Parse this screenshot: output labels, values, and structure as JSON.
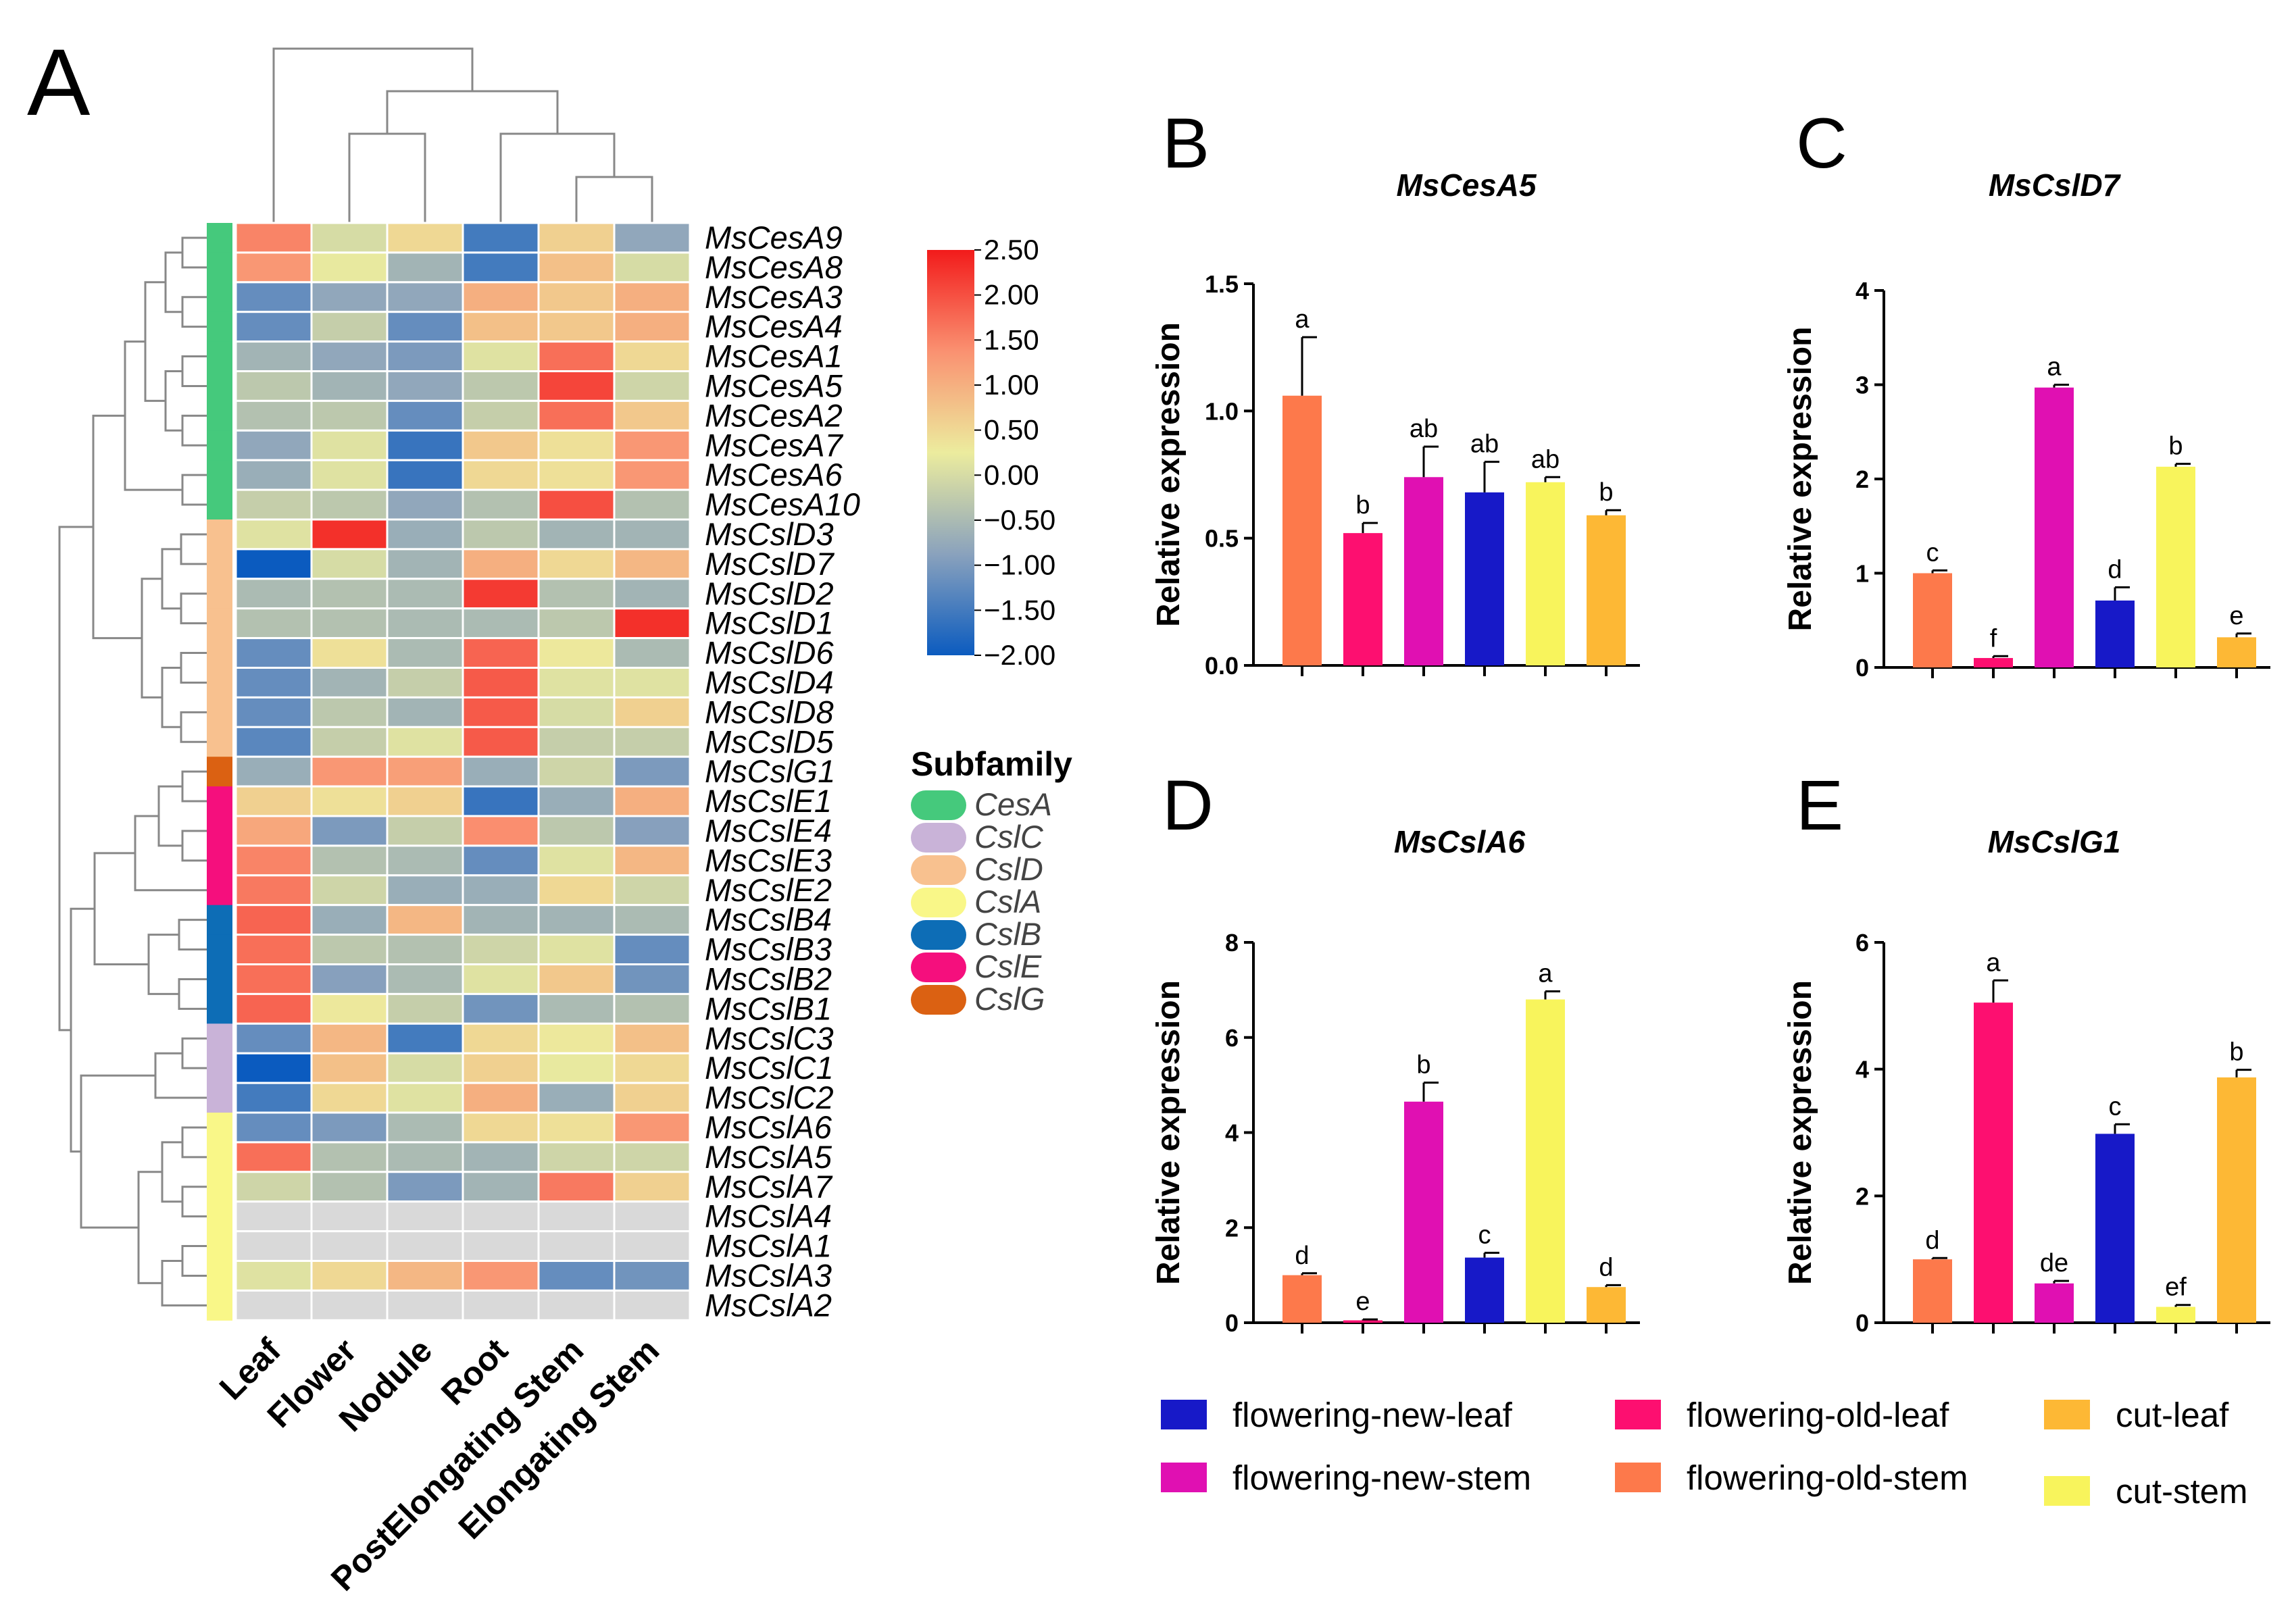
{
  "figure": {
    "panel_labels": [
      "A",
      "B",
      "C",
      "D",
      "E"
    ]
  },
  "chart_data": [
    {
      "type": "heatmap",
      "panel": "A",
      "columns": [
        "Leaf",
        "Flower",
        "Nodule",
        "Root",
        "PostElongating Stem",
        "Elongating Stem"
      ],
      "rows": [
        "MsCesA9",
        "MsCesA8",
        "MsCesA3",
        "MsCesA4",
        "MsCesA1",
        "MsCesA5",
        "MsCesA2",
        "MsCesA7",
        "MsCesA6",
        "MsCesA10",
        "MsCslD3",
        "MsCslD7",
        "MsCslD2",
        "MsCslD1",
        "MsCslD6",
        "MsCslD4",
        "MsCslD8",
        "MsCslD5",
        "MsCslG1",
        "MsCslE1",
        "MsCslE4",
        "MsCslE3",
        "MsCslE2",
        "MsCslB4",
        "MsCslB3",
        "MsCslB2",
        "MsCslB1",
        "MsCslC3",
        "MsCslC1",
        "MsCslC2",
        "MsCslA6",
        "MsCslA5",
        "MsCslA7",
        "MsCslA4",
        "MsCslA1",
        "MsCslA3",
        "MsCslA2"
      ],
      "row_subfamily": [
        "CesA",
        "CesA",
        "CesA",
        "CesA",
        "CesA",
        "CesA",
        "CesA",
        "CesA",
        "CesA",
        "CesA",
        "CslD",
        "CslD",
        "CslD",
        "CslD",
        "CslD",
        "CslD",
        "CslD",
        "CslD",
        "CslG",
        "CslE",
        "CslE",
        "CslE",
        "CslE",
        "CslB",
        "CslB",
        "CslB",
        "CslB",
        "CslC",
        "CslC",
        "CslC",
        "CslA",
        "CslA",
        "CslA",
        "CslA",
        "CslA",
        "CslA",
        "CslA"
      ],
      "values": [
        [
          1.5,
          0.0,
          0.5,
          -1.5,
          0.6,
          -0.8
        ],
        [
          1.3,
          0.2,
          -0.6,
          -1.5,
          0.8,
          0.0
        ],
        [
          -1.2,
          -0.8,
          -0.8,
          1.0,
          0.7,
          1.0
        ],
        [
          -1.2,
          -0.2,
          -1.2,
          0.8,
          0.7,
          1.0
        ],
        [
          -0.6,
          -0.8,
          -1.0,
          0.1,
          1.7,
          0.5
        ],
        [
          -0.3,
          -0.6,
          -0.8,
          -0.3,
          2.1,
          -0.1
        ],
        [
          -0.4,
          -0.3,
          -1.2,
          -0.2,
          1.7,
          0.7
        ],
        [
          -0.8,
          0.1,
          -1.6,
          0.7,
          0.4,
          1.3
        ],
        [
          -0.7,
          0.1,
          -1.6,
          0.5,
          0.4,
          1.3
        ],
        [
          -0.2,
          -0.3,
          -0.8,
          -0.4,
          2.0,
          -0.4
        ],
        [
          0.1,
          2.3,
          -0.7,
          -0.3,
          -0.6,
          -0.6
        ],
        [
          -2.0,
          0.0,
          -0.6,
          1.0,
          0.5,
          0.9
        ],
        [
          -0.5,
          -0.4,
          -0.5,
          2.2,
          -0.4,
          -0.6
        ],
        [
          -0.4,
          -0.4,
          -0.5,
          -0.5,
          -0.3,
          2.3
        ],
        [
          -1.2,
          0.4,
          -0.5,
          1.8,
          0.3,
          -0.5
        ],
        [
          -1.2,
          -0.6,
          -0.2,
          1.9,
          0.1,
          0.1
        ],
        [
          -1.2,
          -0.3,
          -0.6,
          1.9,
          0.0,
          0.6
        ],
        [
          -1.3,
          -0.2,
          0.1,
          1.9,
          -0.2,
          -0.2
        ],
        [
          -0.7,
          1.3,
          1.2,
          -0.7,
          -0.1,
          -1.0
        ],
        [
          0.6,
          0.4,
          0.6,
          -1.6,
          -0.7,
          1.0
        ],
        [
          1.1,
          -1.0,
          -0.2,
          1.4,
          -0.3,
          -0.9
        ],
        [
          1.5,
          -0.4,
          -0.5,
          -1.2,
          0.1,
          0.9
        ],
        [
          1.6,
          -0.1,
          -0.7,
          -0.7,
          0.5,
          -0.1
        ],
        [
          1.8,
          -0.7,
          0.9,
          -0.6,
          -0.6,
          -0.5
        ],
        [
          1.7,
          -0.3,
          -0.4,
          -0.1,
          0.1,
          -1.2
        ],
        [
          1.7,
          -0.9,
          -0.5,
          0.1,
          0.7,
          -1.1
        ],
        [
          1.8,
          0.3,
          -0.2,
          -1.1,
          -0.5,
          -0.4
        ],
        [
          -1.2,
          0.9,
          -1.5,
          0.5,
          0.3,
          0.8
        ],
        [
          -2.0,
          0.8,
          0.0,
          0.6,
          0.2,
          0.5
        ],
        [
          -1.5,
          0.5,
          0.1,
          1.0,
          -0.7,
          0.6
        ],
        [
          -1.2,
          -1.0,
          -0.5,
          0.5,
          0.4,
          1.3
        ],
        [
          1.7,
          -0.4,
          -0.5,
          -0.6,
          -0.1,
          -0.1
        ],
        [
          -0.1,
          -0.4,
          -1.0,
          -0.6,
          1.6,
          0.6
        ],
        [
          null,
          null,
          null,
          null,
          null,
          null
        ],
        [
          null,
          null,
          null,
          null,
          null,
          null
        ],
        [
          0.1,
          0.5,
          0.9,
          1.3,
          -1.2,
          -1.1
        ],
        [
          null,
          null,
          null,
          null,
          null,
          null
        ]
      ],
      "colorbar": {
        "min": -2.0,
        "max": 2.5,
        "ticks": [
          "2.50",
          "2.00",
          "1.50",
          "1.00",
          "0.50",
          "0.00",
          "−0.50",
          "−1.00",
          "−1.50",
          "−2.00"
        ]
      },
      "subfamily_legend": {
        "title": "Subfamily",
        "entries": [
          {
            "name": "CesA",
            "color": "#45c97c"
          },
          {
            "name": "CslC",
            "color": "#c9b3d8"
          },
          {
            "name": "CslD",
            "color": "#f8c18f"
          },
          {
            "name": "CslA",
            "color": "#f9f788"
          },
          {
            "name": "CslB",
            "color": "#0d6db6"
          },
          {
            "name": "CslE",
            "color": "#f50f7d"
          },
          {
            "name": "CslG",
            "color": "#db6112"
          }
        ]
      }
    },
    {
      "type": "bar",
      "panel": "B",
      "title": "MsCesA5",
      "ylabel": "Relative expression",
      "ylim": [
        0,
        1.5
      ],
      "yticks": [
        "0.0",
        "0.5",
        "1.0",
        "1.5"
      ],
      "values": [
        1.06,
        0.52,
        0.74,
        0.68,
        0.72,
        0.59
      ],
      "errors": [
        0.23,
        0.04,
        0.12,
        0.12,
        0.02,
        0.02
      ],
      "letters": [
        "a",
        "b",
        "ab",
        "ab",
        "ab",
        "b"
      ]
    },
    {
      "type": "bar",
      "panel": "C",
      "title": "MsCslD7",
      "ylabel": "Relative expression",
      "ylim": [
        0,
        4
      ],
      "yticks": [
        "0",
        "1",
        "2",
        "3",
        "4"
      ],
      "values": [
        1.0,
        0.1,
        2.97,
        0.71,
        2.13,
        0.32
      ],
      "errors": [
        0.03,
        0.02,
        0.03,
        0.14,
        0.03,
        0.04
      ],
      "letters": [
        "c",
        "f",
        "a",
        "d",
        "b",
        "e"
      ]
    },
    {
      "type": "bar",
      "panel": "D",
      "title": "MsCslA6",
      "ylabel": "Relative expression",
      "ylim": [
        0,
        8
      ],
      "yticks": [
        "0",
        "2",
        "4",
        "6",
        "8"
      ],
      "values": [
        1.0,
        0.05,
        4.65,
        1.37,
        6.8,
        0.75
      ],
      "errors": [
        0.04,
        0.02,
        0.4,
        0.1,
        0.17,
        0.04
      ],
      "letters": [
        "d",
        "e",
        "b",
        "c",
        "a",
        "d"
      ]
    },
    {
      "type": "bar",
      "panel": "E",
      "title": "MsCslG1",
      "ylabel": "Relative expression",
      "ylim": [
        0,
        6
      ],
      "yticks": [
        "0",
        "2",
        "4",
        "6"
      ],
      "values": [
        1.0,
        5.05,
        0.62,
        2.98,
        0.25,
        3.87
      ],
      "errors": [
        0.02,
        0.35,
        0.04,
        0.15,
        0.03,
        0.12
      ],
      "letters": [
        "d",
        "a",
        "de",
        "c",
        "ef",
        "b"
      ]
    }
  ],
  "bar_colors": [
    "#fd794b",
    "#fd0f70",
    "#e010b2",
    "#1719c8",
    "#f8f45c",
    "#fdb835"
  ],
  "bar_legend": [
    {
      "label": "flowering-new-leaf",
      "color": "#1719c8"
    },
    {
      "label": "flowering-old-leaf",
      "color": "#fd0f70"
    },
    {
      "label": "cut-leaf",
      "color": "#fdb835"
    },
    {
      "label": "flowering-new-stem",
      "color": "#e010b2"
    },
    {
      "label": "flowering-old-stem",
      "color": "#fd794b"
    },
    {
      "label": "cut-stem",
      "color": "#f8f45c"
    }
  ]
}
